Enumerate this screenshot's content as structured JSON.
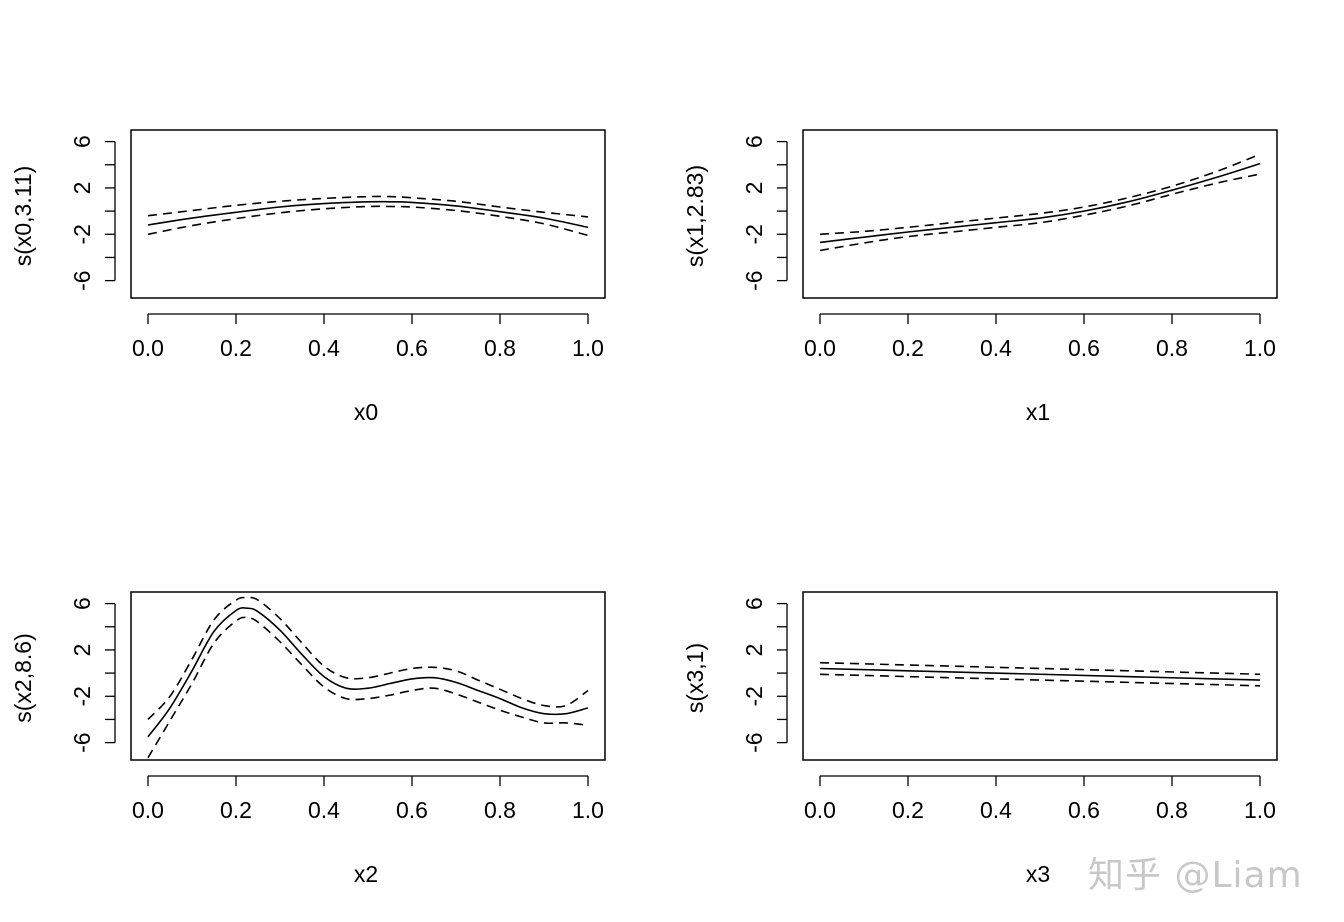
{
  "watermark": "知乎 @Liam",
  "chart_data": [
    {
      "type": "line",
      "xlabel": "x0",
      "ylabel": "s(x0,3.11)",
      "xlim": [
        0,
        1
      ],
      "ylim": [
        -7.5,
        7
      ],
      "xticks": [
        "0.0",
        "0.2",
        "0.4",
        "0.6",
        "0.8",
        "1.0"
      ],
      "yticks": [
        "-6",
        "-2",
        "2",
        "6"
      ],
      "x": [
        0.0,
        0.1,
        0.2,
        0.3,
        0.4,
        0.5,
        0.55,
        0.6,
        0.7,
        0.8,
        0.9,
        1.0
      ],
      "series": [
        {
          "name": "fit",
          "style": "solid",
          "values": [
            -1.2,
            -0.6,
            -0.1,
            0.35,
            0.65,
            0.8,
            0.8,
            0.75,
            0.45,
            -0.05,
            -0.6,
            -1.4
          ]
        },
        {
          "name": "upper",
          "style": "dashed",
          "values": [
            -0.4,
            0.05,
            0.5,
            0.85,
            1.1,
            1.25,
            1.25,
            1.15,
            0.85,
            0.35,
            -0.1,
            -0.5
          ]
        },
        {
          "name": "lower",
          "style": "dashed",
          "values": [
            -2.0,
            -1.25,
            -0.65,
            -0.15,
            0.2,
            0.4,
            0.4,
            0.35,
            0.05,
            -0.45,
            -1.1,
            -2.1
          ]
        }
      ]
    },
    {
      "type": "line",
      "xlabel": "x1",
      "ylabel": "s(x1,2.83)",
      "xlim": [
        0,
        1
      ],
      "ylim": [
        -7.5,
        7
      ],
      "xticks": [
        "0.0",
        "0.2",
        "0.4",
        "0.6",
        "0.8",
        "1.0"
      ],
      "yticks": [
        "-6",
        "-2",
        "2",
        "6"
      ],
      "x": [
        0.0,
        0.1,
        0.2,
        0.3,
        0.4,
        0.5,
        0.6,
        0.7,
        0.8,
        0.9,
        1.0
      ],
      "series": [
        {
          "name": "fit",
          "style": "solid",
          "values": [
            -2.7,
            -2.25,
            -1.8,
            -1.4,
            -1.0,
            -0.6,
            0.0,
            0.8,
            1.8,
            2.9,
            4.1
          ]
        },
        {
          "name": "upper",
          "style": "dashed",
          "values": [
            -2.0,
            -1.75,
            -1.4,
            -1.0,
            -0.6,
            -0.2,
            0.35,
            1.15,
            2.15,
            3.4,
            4.9
          ]
        },
        {
          "name": "lower",
          "style": "dashed",
          "values": [
            -3.4,
            -2.75,
            -2.2,
            -1.8,
            -1.4,
            -1.0,
            -0.35,
            0.45,
            1.45,
            2.4,
            3.2
          ]
        }
      ]
    },
    {
      "type": "line",
      "xlabel": "x2",
      "ylabel": "s(x2,8.6)",
      "xlim": [
        0,
        1
      ],
      "ylim": [
        -7.5,
        7
      ],
      "xticks": [
        "0.0",
        "0.2",
        "0.4",
        "0.6",
        "0.8",
        "1.0"
      ],
      "yticks": [
        "-6",
        "-2",
        "2",
        "6"
      ],
      "x": [
        0.0,
        0.05,
        0.1,
        0.15,
        0.2,
        0.225,
        0.25,
        0.3,
        0.35,
        0.4,
        0.45,
        0.5,
        0.55,
        0.6,
        0.65,
        0.7,
        0.75,
        0.8,
        0.85,
        0.9,
        0.95,
        1.0
      ],
      "series": [
        {
          "name": "fit",
          "style": "solid",
          "values": [
            -5.5,
            -3.0,
            0.2,
            3.6,
            5.4,
            5.6,
            5.3,
            3.7,
            1.6,
            -0.3,
            -1.3,
            -1.3,
            -0.9,
            -0.5,
            -0.4,
            -0.8,
            -1.5,
            -2.2,
            -3.0,
            -3.5,
            -3.5,
            -3.0
          ]
        },
        {
          "name": "upper",
          "style": "dashed",
          "values": [
            -4.0,
            -2.0,
            1.2,
            4.6,
            6.3,
            6.5,
            6.3,
            4.7,
            2.6,
            0.6,
            -0.4,
            -0.4,
            0.0,
            0.4,
            0.5,
            0.2,
            -0.6,
            -1.4,
            -2.2,
            -2.8,
            -2.8,
            -1.5
          ]
        },
        {
          "name": "lower",
          "style": "dashed",
          "values": [
            -7.3,
            -4.1,
            -0.9,
            2.6,
            4.5,
            4.8,
            4.4,
            2.7,
            0.7,
            -1.2,
            -2.2,
            -2.2,
            -1.9,
            -1.5,
            -1.3,
            -1.8,
            -2.5,
            -3.2,
            -3.8,
            -4.3,
            -4.3,
            -4.5
          ]
        }
      ]
    },
    {
      "type": "line",
      "xlabel": "x3",
      "ylabel": "s(x3,1)",
      "xlim": [
        0,
        1
      ],
      "ylim": [
        -7.5,
        7
      ],
      "xticks": [
        "0.0",
        "0.2",
        "0.4",
        "0.6",
        "0.8",
        "1.0"
      ],
      "yticks": [
        "-6",
        "-2",
        "2",
        "6"
      ],
      "x": [
        0.0,
        1.0
      ],
      "series": [
        {
          "name": "fit",
          "style": "solid",
          "values": [
            0.4,
            -0.6
          ]
        },
        {
          "name": "upper",
          "style": "dashed",
          "values": [
            0.9,
            -0.1
          ]
        },
        {
          "name": "lower",
          "style": "dashed",
          "values": [
            -0.1,
            -1.1
          ]
        }
      ]
    }
  ]
}
